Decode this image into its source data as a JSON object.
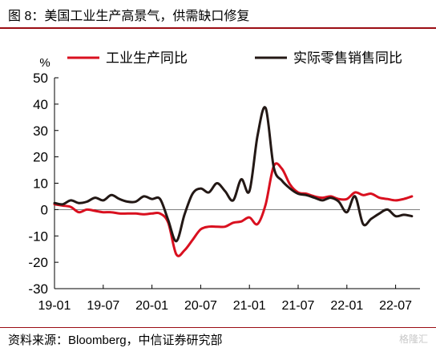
{
  "figure": {
    "title": "图 8：美国工业生产高景气，供需缺口修复",
    "source": "资料来源：Bloomberg，中信证券研究部",
    "watermark": "格隆汇"
  },
  "colors": {
    "industrial_production": "#d9101f",
    "retail_sales": "#231815",
    "rule": "#9b0d14"
  },
  "chart_data": {
    "type": "line",
    "y_unit_label": "%",
    "ylim": [
      -30,
      50
    ],
    "yticks": [
      -30,
      -20,
      -10,
      0,
      10,
      20,
      30,
      40,
      50
    ],
    "xlim": [
      "2019-01",
      "2022-10"
    ],
    "xtick_labels": [
      "19-01",
      "19-07",
      "20-01",
      "20-07",
      "21-01",
      "21-07",
      "22-01",
      "22-07"
    ],
    "xticks": [
      "2019-01",
      "2019-07",
      "2020-01",
      "2020-07",
      "2021-01",
      "2021-07",
      "2022-01",
      "2022-07"
    ],
    "legend_position": "top",
    "grid": false,
    "series": [
      {
        "name": "工业生产同比",
        "color": "#d9101f",
        "x": [
          "2019-01",
          "2019-02",
          "2019-03",
          "2019-04",
          "2019-05",
          "2019-06",
          "2019-07",
          "2019-08",
          "2019-09",
          "2019-10",
          "2019-11",
          "2019-12",
          "2020-01",
          "2020-02",
          "2020-03",
          "2020-04",
          "2020-05",
          "2020-06",
          "2020-07",
          "2020-08",
          "2020-09",
          "2020-10",
          "2020-11",
          "2020-12",
          "2021-01",
          "2021-02",
          "2021-03",
          "2021-04",
          "2021-05",
          "2021-06",
          "2021-07",
          "2021-08",
          "2021-09",
          "2021-10",
          "2021-11",
          "2021-12",
          "2022-01",
          "2022-02",
          "2022-03",
          "2022-04",
          "2022-05",
          "2022-06",
          "2022-07",
          "2022-08",
          "2022-09"
        ],
        "y": [
          2.0,
          1.5,
          1.0,
          -1.0,
          0.0,
          -0.5,
          -1.0,
          -1.0,
          -1.5,
          -1.5,
          -1.5,
          -1.8,
          -1.5,
          -1.5,
          -5.0,
          -17.0,
          -15.5,
          -11.5,
          -7.5,
          -6.5,
          -6.5,
          -6.5,
          -5.0,
          -4.5,
          -3.0,
          -5.5,
          2.0,
          16.5,
          15.5,
          9.5,
          6.5,
          6.0,
          5.0,
          4.5,
          5.0,
          4.0,
          4.0,
          6.5,
          5.5,
          6.0,
          4.5,
          4.0,
          3.5,
          4.0,
          5.0
        ]
      },
      {
        "name": "实际零售销售同比",
        "color": "#231815",
        "x": [
          "2019-01",
          "2019-02",
          "2019-03",
          "2019-04",
          "2019-05",
          "2019-06",
          "2019-07",
          "2019-08",
          "2019-09",
          "2019-10",
          "2019-11",
          "2019-12",
          "2020-01",
          "2020-02",
          "2020-03",
          "2020-04",
          "2020-05",
          "2020-06",
          "2020-07",
          "2020-08",
          "2020-09",
          "2020-10",
          "2020-11",
          "2020-12",
          "2021-01",
          "2021-02",
          "2021-03",
          "2021-04",
          "2021-05",
          "2021-06",
          "2021-07",
          "2021-08",
          "2021-09",
          "2021-10",
          "2021-11",
          "2021-12",
          "2022-01",
          "2022-02",
          "2022-03",
          "2022-04",
          "2022-05",
          "2022-06",
          "2022-07",
          "2022-08",
          "2022-09"
        ],
        "y": [
          2.5,
          2.0,
          3.5,
          2.5,
          3.0,
          4.5,
          3.5,
          5.5,
          4.0,
          3.0,
          3.0,
          5.0,
          4.0,
          4.0,
          -4.0,
          -12.0,
          -2.0,
          6.0,
          8.0,
          6.5,
          10.0,
          7.0,
          3.5,
          11.5,
          7.0,
          28.0,
          38.5,
          16.0,
          11.0,
          8.0,
          6.0,
          5.5,
          4.5,
          3.5,
          4.5,
          3.0,
          -1.0,
          5.0,
          -5.5,
          -3.5,
          -1.5,
          0.0,
          -2.5,
          -2.0,
          -2.5
        ]
      }
    ]
  }
}
